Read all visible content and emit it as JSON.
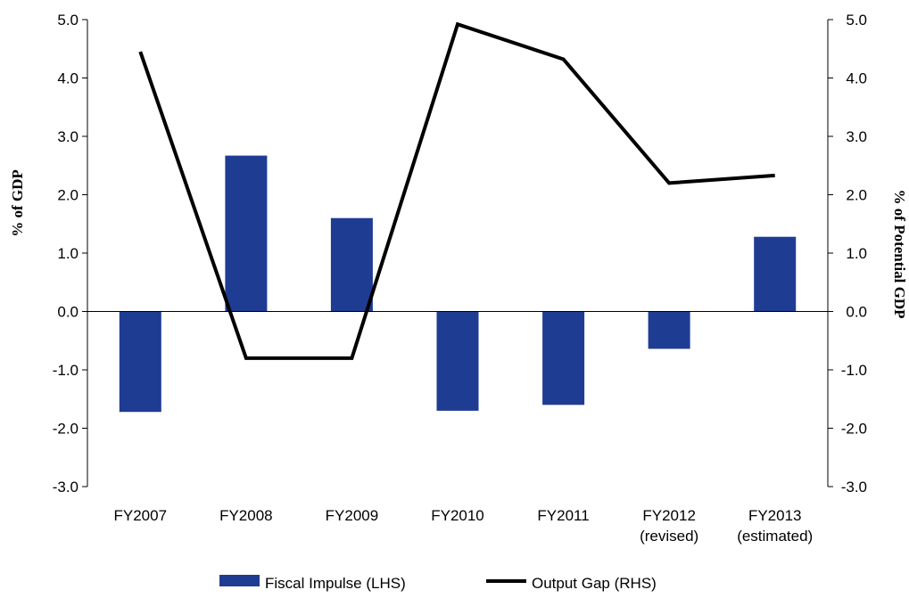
{
  "chart_data": {
    "type": "bar",
    "categories": [
      [
        "FY2007"
      ],
      [
        "FY2008"
      ],
      [
        "FY2009"
      ],
      [
        "FY2010"
      ],
      [
        "FY2011"
      ],
      [
        "FY2012",
        "(revised)"
      ],
      [
        "FY2013",
        "(estimated)"
      ]
    ],
    "series": [
      {
        "name": "Fiscal Impulse (LHS)",
        "type": "bar",
        "axis": "left",
        "color": "#1f3c93",
        "values": [
          -1.72,
          2.67,
          1.6,
          -1.7,
          -1.6,
          -0.64,
          1.28
        ]
      },
      {
        "name": "Output Gap (RHS)",
        "type": "line",
        "axis": "right",
        "color": "#000000",
        "values": [
          4.45,
          -0.8,
          -0.8,
          4.92,
          4.32,
          2.2,
          2.33
        ]
      }
    ],
    "ylabel": "% of GDP",
    "y2label": "% of Potential GDP",
    "ylim": [
      -3.0,
      5.0
    ],
    "y2lim": [
      -3.0,
      5.0
    ],
    "yticks": [
      "5.0",
      "4.0",
      "3.0",
      "2.0",
      "1.0",
      "0.0",
      "-1.0",
      "-2.0",
      "-3.0"
    ],
    "y2ticks": [
      "5.0",
      "4.0",
      "3.0",
      "2.0",
      "1.0",
      "0.0",
      "-1.0",
      "-2.0",
      "-3.0"
    ],
    "grid": false,
    "legend_position": "bottom"
  }
}
